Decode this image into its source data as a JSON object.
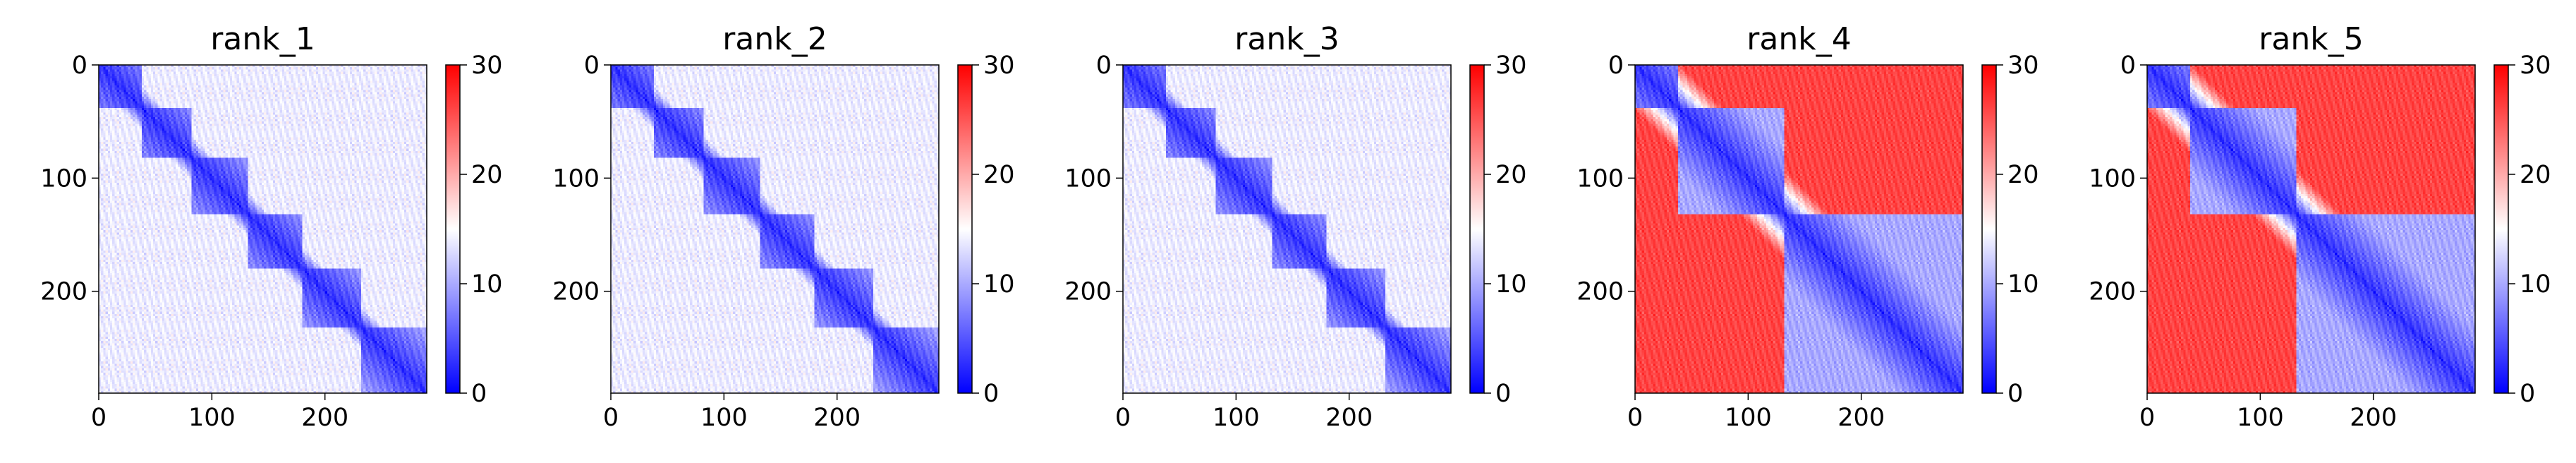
{
  "chart_data": [
    {
      "type": "heatmap",
      "title": "rank_1",
      "n": 290,
      "xlim": [
        0,
        290
      ],
      "ylim": [
        290,
        0
      ],
      "x_ticks": [
        0,
        100,
        200
      ],
      "y_ticks": [
        0,
        100,
        200
      ],
      "domains": [
        [
          0,
          38
        ],
        [
          38,
          82
        ],
        [
          82,
          132
        ],
        [
          132,
          180
        ],
        [
          180,
          232
        ],
        [
          232,
          290
        ]
      ],
      "colorbar": {
        "colormap": "bwr",
        "range": [
          0,
          30
        ],
        "ticks": [
          0,
          10,
          20,
          30
        ]
      }
    },
    {
      "type": "heatmap",
      "title": "rank_2",
      "n": 290,
      "xlim": [
        0,
        290
      ],
      "ylim": [
        290,
        0
      ],
      "x_ticks": [
        0,
        100,
        200
      ],
      "y_ticks": [
        0,
        100,
        200
      ],
      "domains": [
        [
          0,
          38
        ],
        [
          38,
          82
        ],
        [
          82,
          132
        ],
        [
          132,
          180
        ],
        [
          180,
          232
        ],
        [
          232,
          290
        ]
      ],
      "colorbar": {
        "colormap": "bwr",
        "range": [
          0,
          30
        ],
        "ticks": [
          0,
          10,
          20,
          30
        ]
      }
    },
    {
      "type": "heatmap",
      "title": "rank_3",
      "n": 290,
      "xlim": [
        0,
        290
      ],
      "ylim": [
        290,
        0
      ],
      "x_ticks": [
        0,
        100,
        200
      ],
      "y_ticks": [
        0,
        100,
        200
      ],
      "domains": [
        [
          0,
          38
        ],
        [
          38,
          82
        ],
        [
          82,
          132
        ],
        [
          132,
          180
        ],
        [
          180,
          232
        ],
        [
          232,
          290
        ]
      ],
      "colorbar": {
        "colormap": "bwr",
        "range": [
          0,
          30
        ],
        "ticks": [
          0,
          10,
          20,
          30
        ]
      }
    },
    {
      "type": "heatmap",
      "title": "rank_4",
      "n": 290,
      "xlim": [
        0,
        290
      ],
      "ylim": [
        290,
        0
      ],
      "x_ticks": [
        0,
        100,
        200
      ],
      "y_ticks": [
        0,
        100,
        200
      ],
      "domains": [
        [
          0,
          38
        ],
        [
          38,
          132
        ],
        [
          132,
          290
        ]
      ],
      "colorbar": {
        "colormap": "bwr",
        "range": [
          0,
          30
        ],
        "ticks": [
          0,
          10,
          20,
          30
        ]
      }
    },
    {
      "type": "heatmap",
      "title": "rank_5",
      "n": 290,
      "xlim": [
        0,
        290
      ],
      "ylim": [
        290,
        0
      ],
      "x_ticks": [
        0,
        100,
        200
      ],
      "y_ticks": [
        0,
        100,
        200
      ],
      "domains": [
        [
          0,
          38
        ],
        [
          38,
          132
        ],
        [
          132,
          290
        ]
      ],
      "colorbar": {
        "colormap": "bwr",
        "range": [
          0,
          30
        ],
        "ticks": [
          0,
          10,
          20,
          30
        ]
      }
    }
  ]
}
